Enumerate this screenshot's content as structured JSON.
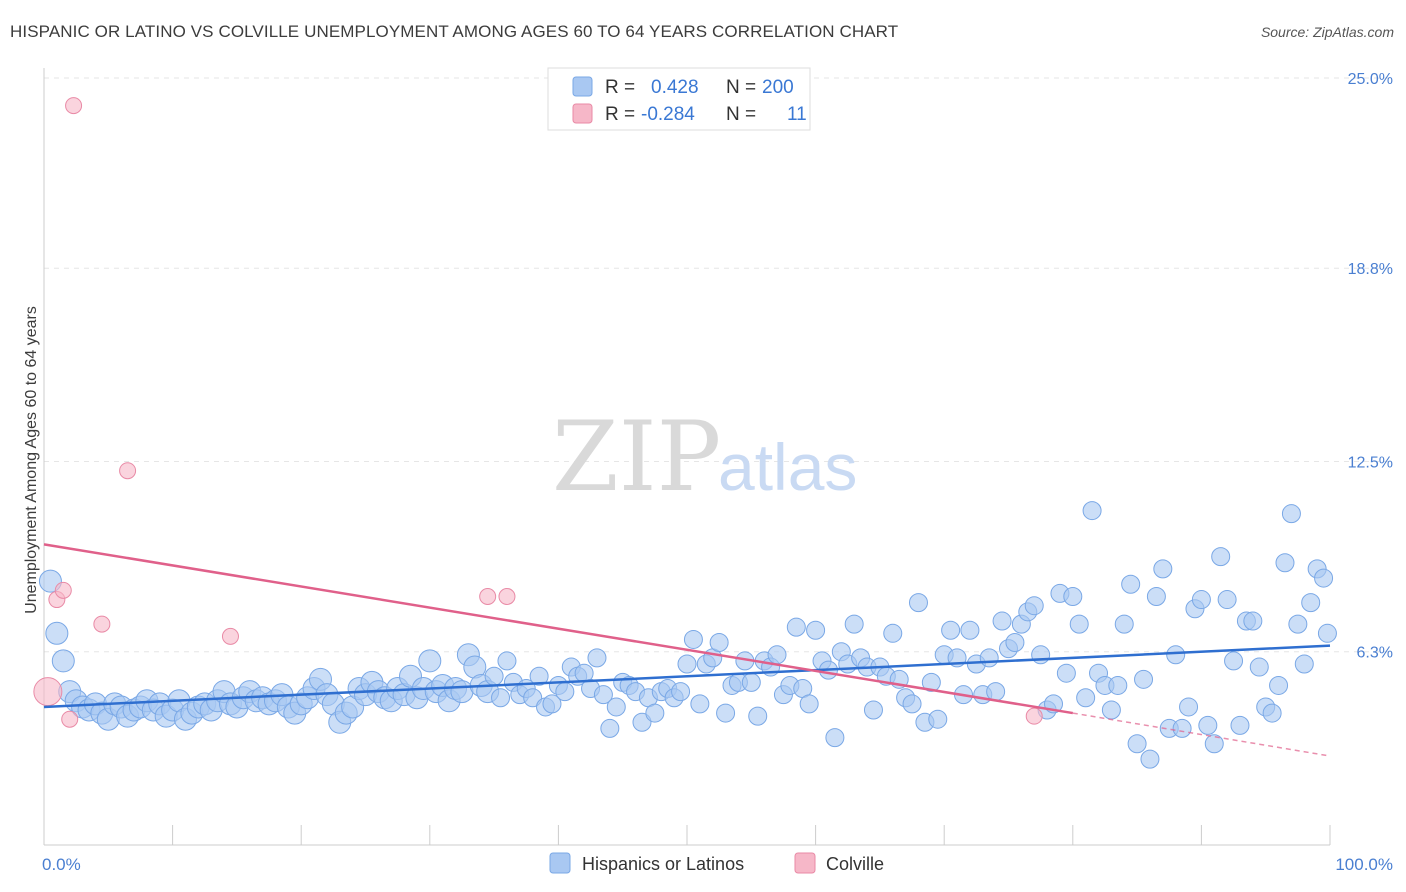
{
  "title": "HISPANIC OR LATINO VS COLVILLE UNEMPLOYMENT AMONG AGES 60 TO 64 YEARS CORRELATION CHART",
  "source": "Source: ZipAtlas.com",
  "watermark": {
    "zip": "ZIP",
    "atlas": "atlas"
  },
  "legend": {
    "rows": [
      {
        "r_label": "R =",
        "r_value": "0.428",
        "n_label": "N =",
        "n_value": "200",
        "color": "#a9c8f2"
      },
      {
        "r_label": "R =",
        "r_value": "-0.284",
        "n_label": "N =",
        "n_value": "11",
        "color": "#f6b7c8"
      }
    ]
  },
  "chart_data": {
    "type": "scatter",
    "title": "HISPANIC OR LATINO VS COLVILLE UNEMPLOYMENT AMONG AGES 60 TO 64 YEARS CORRELATION CHART",
    "xlabel": "",
    "ylabel": "Unemployment Among Ages 60 to 64 years",
    "xlim": [
      0,
      100
    ],
    "ylim": [
      0,
      25.0
    ],
    "x_tick_labels": [
      "0.0%",
      "100.0%"
    ],
    "y_ticks": [
      6.3,
      12.5,
      18.8,
      25.0
    ],
    "y_tick_labels": [
      "6.3%",
      "12.5%",
      "18.8%",
      "25.0%"
    ],
    "grid": true,
    "legend_position": "top-center",
    "series": [
      {
        "name": "Hispanics or Latinos",
        "color": "#a9c8f2",
        "stroke": "#7aa8e6",
        "trend": {
          "x": [
            0,
            100
          ],
          "y": [
            4.5,
            6.5
          ],
          "color": "#2f6fd0"
        },
        "points": [
          [
            0.5,
            8.6
          ],
          [
            1.0,
            6.9
          ],
          [
            1.5,
            6.0
          ],
          [
            2.0,
            5.0
          ],
          [
            2.5,
            4.7
          ],
          [
            3.0,
            4.5
          ],
          [
            3.5,
            4.4
          ],
          [
            4.0,
            4.6
          ],
          [
            4.5,
            4.3
          ],
          [
            5.0,
            4.1
          ],
          [
            5.5,
            4.6
          ],
          [
            6.0,
            4.5
          ],
          [
            6.5,
            4.2
          ],
          [
            7.0,
            4.4
          ],
          [
            7.5,
            4.5
          ],
          [
            8.0,
            4.7
          ],
          [
            8.5,
            4.4
          ],
          [
            9.0,
            4.6
          ],
          [
            9.5,
            4.2
          ],
          [
            10.0,
            4.4
          ],
          [
            10.5,
            4.7
          ],
          [
            11.0,
            4.1
          ],
          [
            11.5,
            4.3
          ],
          [
            12.0,
            4.5
          ],
          [
            12.5,
            4.6
          ],
          [
            13.0,
            4.4
          ],
          [
            13.5,
            4.7
          ],
          [
            14.0,
            5.0
          ],
          [
            14.5,
            4.6
          ],
          [
            15.0,
            4.5
          ],
          [
            15.5,
            4.8
          ],
          [
            16.0,
            5.0
          ],
          [
            16.5,
            4.7
          ],
          [
            17.0,
            4.8
          ],
          [
            17.5,
            4.6
          ],
          [
            18.0,
            4.7
          ],
          [
            18.5,
            4.9
          ],
          [
            19.0,
            4.5
          ],
          [
            19.5,
            4.3
          ],
          [
            20.0,
            4.6
          ],
          [
            20.5,
            4.8
          ],
          [
            21.0,
            5.1
          ],
          [
            21.5,
            5.4
          ],
          [
            22.0,
            4.9
          ],
          [
            22.5,
            4.6
          ],
          [
            23.0,
            4.0
          ],
          [
            23.5,
            4.3
          ],
          [
            24.0,
            4.5
          ],
          [
            24.5,
            5.1
          ],
          [
            25.0,
            4.9
          ],
          [
            25.5,
            5.3
          ],
          [
            26.0,
            5.0
          ],
          [
            26.5,
            4.8
          ],
          [
            27.0,
            4.7
          ],
          [
            27.5,
            5.1
          ],
          [
            28.0,
            4.9
          ],
          [
            28.5,
            5.5
          ],
          [
            29.0,
            4.8
          ],
          [
            29.5,
            5.1
          ],
          [
            30.0,
            6.0
          ],
          [
            30.5,
            5.0
          ],
          [
            31.0,
            5.2
          ],
          [
            31.5,
            4.7
          ],
          [
            32.0,
            5.1
          ],
          [
            32.5,
            5.0
          ],
          [
            33.0,
            6.2
          ],
          [
            33.5,
            5.8
          ],
          [
            34.0,
            5.2
          ],
          [
            34.5,
            5.0
          ],
          [
            35.0,
            5.5
          ],
          [
            35.5,
            4.8
          ],
          [
            36.0,
            6.0
          ],
          [
            36.5,
            5.3
          ],
          [
            37.0,
            4.9
          ],
          [
            37.5,
            5.1
          ],
          [
            38.0,
            4.8
          ],
          [
            38.5,
            5.5
          ],
          [
            39.0,
            4.5
          ],
          [
            39.5,
            4.6
          ],
          [
            40.0,
            5.2
          ],
          [
            40.5,
            5.0
          ],
          [
            41.0,
            5.8
          ],
          [
            41.5,
            5.5
          ],
          [
            42.0,
            5.6
          ],
          [
            42.5,
            5.1
          ],
          [
            43.0,
            6.1
          ],
          [
            43.5,
            4.9
          ],
          [
            44.0,
            3.8
          ],
          [
            44.5,
            4.5
          ],
          [
            45.0,
            5.3
          ],
          [
            45.5,
            5.2
          ],
          [
            46.0,
            5.0
          ],
          [
            46.5,
            4.0
          ],
          [
            47.0,
            4.8
          ],
          [
            47.5,
            4.3
          ],
          [
            48.0,
            5.0
          ],
          [
            48.5,
            5.1
          ],
          [
            49.0,
            4.8
          ],
          [
            49.5,
            5.0
          ],
          [
            50.0,
            5.9
          ],
          [
            50.5,
            6.7
          ],
          [
            51.0,
            4.6
          ],
          [
            51.5,
            5.9
          ],
          [
            52.0,
            6.1
          ],
          [
            52.5,
            6.6
          ],
          [
            53.0,
            4.3
          ],
          [
            53.5,
            5.2
          ],
          [
            54.0,
            5.3
          ],
          [
            54.5,
            6.0
          ],
          [
            55.0,
            5.3
          ],
          [
            55.5,
            4.2
          ],
          [
            56.0,
            6.0
          ],
          [
            56.5,
            5.8
          ],
          [
            57.0,
            6.2
          ],
          [
            57.5,
            4.9
          ],
          [
            58.0,
            5.2
          ],
          [
            58.5,
            7.1
          ],
          [
            59.0,
            5.1
          ],
          [
            59.5,
            4.6
          ],
          [
            60.0,
            7.0
          ],
          [
            60.5,
            6.0
          ],
          [
            61.0,
            5.7
          ],
          [
            61.5,
            3.5
          ],
          [
            62.0,
            6.3
          ],
          [
            62.5,
            5.9
          ],
          [
            63.0,
            7.2
          ],
          [
            63.5,
            6.1
          ],
          [
            64.0,
            5.8
          ],
          [
            64.5,
            4.4
          ],
          [
            65.0,
            5.8
          ],
          [
            65.5,
            5.5
          ],
          [
            66.0,
            6.9
          ],
          [
            66.5,
            5.4
          ],
          [
            67.0,
            4.8
          ],
          [
            67.5,
            4.6
          ],
          [
            68.0,
            7.9
          ],
          [
            68.5,
            4.0
          ],
          [
            69.0,
            5.3
          ],
          [
            69.5,
            4.1
          ],
          [
            70.0,
            6.2
          ],
          [
            70.5,
            7.0
          ],
          [
            71.0,
            6.1
          ],
          [
            71.5,
            4.9
          ],
          [
            72.0,
            7.0
          ],
          [
            72.5,
            5.9
          ],
          [
            73.0,
            4.9
          ],
          [
            73.5,
            6.1
          ],
          [
            74.0,
            5.0
          ],
          [
            74.5,
            7.3
          ],
          [
            75.0,
            6.4
          ],
          [
            75.5,
            6.6
          ],
          [
            76.0,
            7.2
          ],
          [
            76.5,
            7.6
          ],
          [
            77.0,
            7.8
          ],
          [
            77.5,
            6.2
          ],
          [
            78.0,
            4.4
          ],
          [
            78.5,
            4.6
          ],
          [
            79.0,
            8.2
          ],
          [
            79.5,
            5.6
          ],
          [
            80.0,
            8.1
          ],
          [
            80.5,
            7.2
          ],
          [
            81.0,
            4.8
          ],
          [
            81.5,
            10.9
          ],
          [
            82.0,
            5.6
          ],
          [
            82.5,
            5.2
          ],
          [
            83.0,
            4.4
          ],
          [
            83.5,
            5.2
          ],
          [
            84.0,
            7.2
          ],
          [
            84.5,
            8.5
          ],
          [
            85.0,
            3.3
          ],
          [
            85.5,
            5.4
          ],
          [
            86.0,
            2.8
          ],
          [
            86.5,
            8.1
          ],
          [
            87.0,
            9.0
          ],
          [
            87.5,
            3.8
          ],
          [
            88.0,
            6.2
          ],
          [
            88.5,
            3.8
          ],
          [
            89.0,
            4.5
          ],
          [
            89.5,
            7.7
          ],
          [
            90.0,
            8.0
          ],
          [
            90.5,
            3.9
          ],
          [
            91.0,
            3.3
          ],
          [
            91.5,
            9.4
          ],
          [
            92.0,
            8.0
          ],
          [
            92.5,
            6.0
          ],
          [
            93.0,
            3.9
          ],
          [
            93.5,
            7.3
          ],
          [
            94.0,
            7.3
          ],
          [
            94.5,
            5.8
          ],
          [
            95.0,
            4.5
          ],
          [
            95.5,
            4.3
          ],
          [
            96.0,
            5.2
          ],
          [
            96.5,
            9.2
          ],
          [
            97.0,
            10.8
          ],
          [
            97.5,
            7.2
          ],
          [
            98.0,
            5.9
          ],
          [
            98.5,
            7.9
          ],
          [
            99.0,
            9.0
          ],
          [
            99.5,
            8.7
          ],
          [
            99.8,
            6.9
          ]
        ]
      },
      {
        "name": "Colville",
        "color": "#f6b7c8",
        "stroke": "#e98aa6",
        "trend": {
          "x": [
            0,
            80
          ],
          "y": [
            9.8,
            4.3
          ],
          "dashed_to": [
            100,
            2.9
          ],
          "color": "#e0608a"
        },
        "points": [
          [
            0.3,
            5.0
          ],
          [
            1.0,
            8.0
          ],
          [
            1.5,
            8.3
          ],
          [
            2.0,
            4.1
          ],
          [
            2.3,
            24.1
          ],
          [
            4.5,
            7.2
          ],
          [
            6.5,
            12.2
          ],
          [
            14.5,
            6.8
          ],
          [
            34.5,
            8.1
          ],
          [
            36.0,
            8.1
          ],
          [
            77.0,
            4.2
          ]
        ]
      }
    ]
  },
  "bottom_legend": [
    "Hispanics or Latinos",
    "Colville"
  ]
}
